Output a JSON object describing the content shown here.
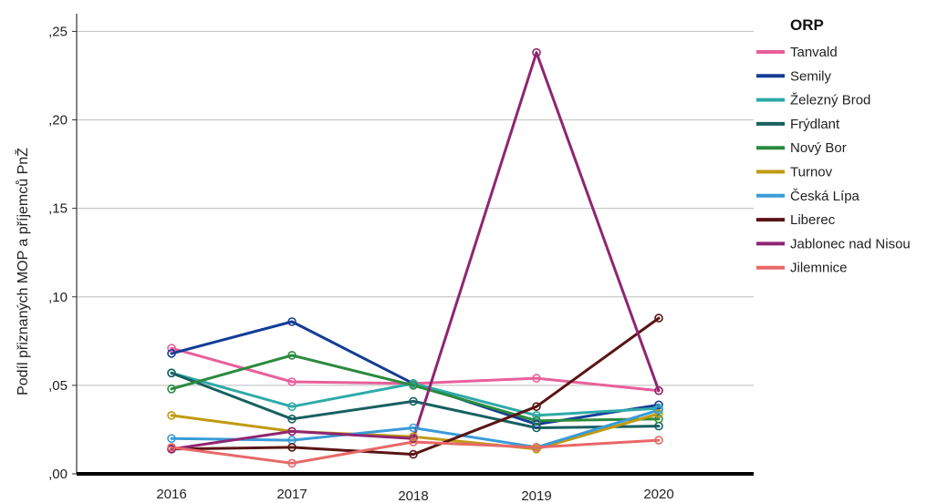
{
  "chart_data": {
    "type": "line",
    "ylabel": "Podíl přiznaných MOP a příjemců PnŽ",
    "xlabel": "",
    "categories": [
      "2016",
      "2017",
      "2018",
      "2019",
      "2020"
    ],
    "ylim": [
      0,
      0.26
    ],
    "yticks": [
      0,
      0.05,
      0.1,
      0.15,
      0.2,
      0.25
    ],
    "ytick_labels": [
      ",00",
      ",05",
      ",10",
      ",15",
      ",20",
      ",25"
    ],
    "grid": true,
    "legend": {
      "title": "ORP",
      "position": "right"
    },
    "series": [
      {
        "name": "Tanvald",
        "color": "#e8609b",
        "values": [
          0.071,
          0.052,
          0.051,
          0.054,
          0.047
        ]
      },
      {
        "name": "Semily",
        "color": "#143c96",
        "values": [
          0.068,
          0.086,
          0.051,
          0.028,
          0.039
        ]
      },
      {
        "name": "Železný Brod",
        "color": "#2eaaa8",
        "values": [
          0.057,
          0.038,
          0.051,
          0.033,
          0.037
        ]
      },
      {
        "name": "Frýdlant",
        "color": "#176060",
        "values": [
          0.057,
          0.031,
          0.041,
          0.026,
          0.027
        ]
      },
      {
        "name": "Nový Bor",
        "color": "#2b8a3e",
        "values": [
          0.048,
          0.067,
          0.05,
          0.03,
          0.031
        ]
      },
      {
        "name": "Turnov",
        "color": "#c09a12",
        "values": [
          0.033,
          0.024,
          0.021,
          0.014,
          0.034
        ]
      },
      {
        "name": "Česká Lípa",
        "color": "#3a9bd8",
        "values": [
          0.02,
          0.019,
          0.026,
          0.015,
          0.036
        ]
      },
      {
        "name": "Liberec",
        "color": "#5a1414",
        "values": [
          0.014,
          0.015,
          0.011,
          0.038,
          0.088
        ]
      },
      {
        "name": "Jablonec nad Nisou",
        "color": "#8e2672",
        "values": [
          0.014,
          0.024,
          0.02,
          0.238,
          0.047
        ]
      },
      {
        "name": "Jilemnice",
        "color": "#e86868",
        "values": [
          0.015,
          0.006,
          0.018,
          0.015,
          0.019
        ]
      }
    ]
  }
}
